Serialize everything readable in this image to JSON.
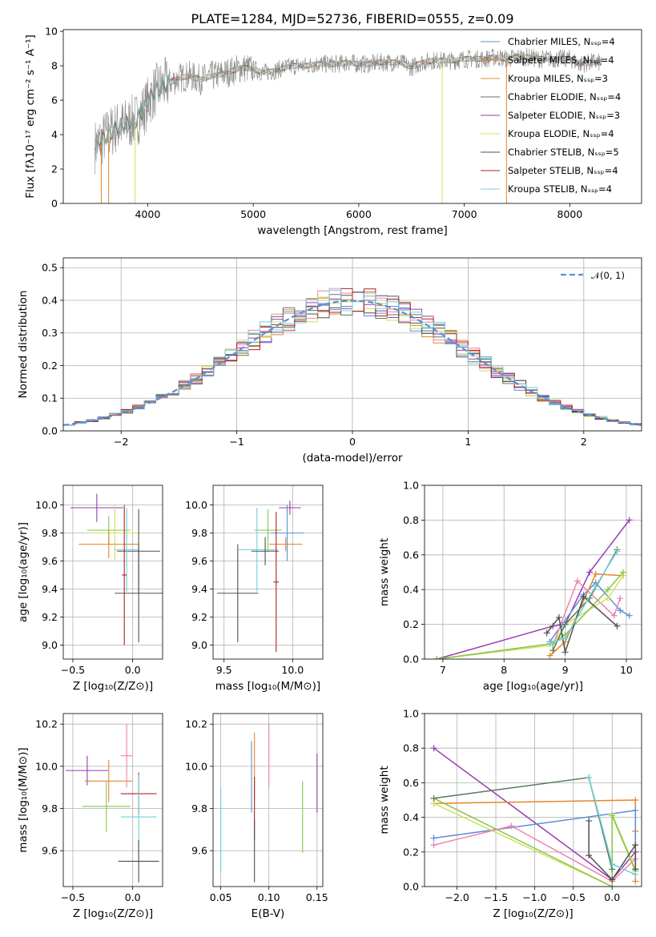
{
  "chart_data": [
    {
      "type": "line",
      "title": "PLATE=1284, MJD=52736, FIBERID=0555, z=0.09",
      "xlabel": "wavelength [Angstrom, rest frame]",
      "ylabel": "Flux [fλ10⁻¹⁷ erg cm⁻² s⁻¹ A⁻¹]",
      "xlim": [
        3200,
        8680
      ],
      "ylim": [
        0,
        10.1
      ],
      "xticks": [
        "4000",
        "5000",
        "6000",
        "7000",
        "8000"
      ],
      "yticks": [
        "0",
        "2",
        "4",
        "6",
        "8",
        "10"
      ],
      "grid": false,
      "legend_position": "right",
      "legend": [
        {
          "name": "Chabrier MILES, Nₛₛₚ=4",
          "color": "#5b8fd8"
        },
        {
          "name": "Salpeter MILES, Nₛₛₚ=4",
          "color": "#e8852a"
        },
        {
          "name": "Kroupa MILES, Nₛₛₚ=3",
          "color": "#e0902a"
        },
        {
          "name": "Chabrier ELODIE, Nₛₛₚ=4",
          "color": "#5a7a5a"
        },
        {
          "name": "Salpeter ELODIE, Nₛₛₚ=3",
          "color": "#9a3ab0"
        },
        {
          "name": "Kroupa ELODIE, Nₛₛₚ=4",
          "color": "#cfe060"
        },
        {
          "name": "Chabrier STELIB, Nₛₛₚ=5",
          "color": "#505050"
        },
        {
          "name": "Salpeter STELIB, Nₛₛₚ=4",
          "color": "#b02020"
        },
        {
          "name": "Kroupa STELIB, Nₛₛₚ=4",
          "color": "#70d0d8"
        }
      ],
      "model_x": [
        3500,
        3600,
        3700,
        3800,
        3900,
        4000,
        4050,
        4100,
        4200,
        4300,
        4400,
        4500,
        4600,
        4700,
        4800,
        4900,
        5000,
        5100,
        5200,
        5300,
        5400,
        5500,
        5600,
        5700,
        5800,
        5900,
        6000,
        6100,
        6200,
        6300,
        6400,
        6500,
        6600,
        6700,
        6800,
        6900,
        7000,
        7100,
        7200,
        7300,
        7400,
        7500,
        7600,
        7700,
        7800,
        7900,
        8000,
        8100,
        8200,
        8300
      ],
      "model_y": [
        3.3,
        3.9,
        4.4,
        4.6,
        4.9,
        5.8,
        6.4,
        6.7,
        7.0,
        7.3,
        7.4,
        7.2,
        7.4,
        7.5,
        7.7,
        7.9,
        7.8,
        7.6,
        7.7,
        7.9,
        8.0,
        8.0,
        8.1,
        8.1,
        8.1,
        8.2,
        8.1,
        8.1,
        8.2,
        8.2,
        8.2,
        7.9,
        8.2,
        8.3,
        8.3,
        8.3,
        8.4,
        8.4,
        8.4,
        8.5,
        8.4,
        8.5,
        8.5,
        8.4,
        8.4,
        8.4,
        8.4,
        8.1,
        8.2,
        8.2
      ]
    },
    {
      "type": "histogram",
      "xlabel": "(data-model)/error",
      "ylabel": "Normed distribution",
      "xlim": [
        -2.5,
        2.5
      ],
      "ylim": [
        0,
        0.53
      ],
      "xticks": [
        "−2",
        "−1",
        "0",
        "1",
        "2"
      ],
      "yticks": [
        "0.0",
        "0.1",
        "0.2",
        "0.3",
        "0.4",
        "0.5"
      ],
      "grid": true,
      "legend": [
        {
          "name": "𝒩(0, 1)",
          "color": "#5b8fd8",
          "style": "dashed"
        }
      ],
      "legend_position": "top-right",
      "bin_width": 0.1,
      "bin_start": -2.5,
      "colors": [
        "#5b8fd8",
        "#e8852a",
        "#f080b0",
        "#5a7a5a",
        "#9a3ab0",
        "#cfe060",
        "#505050",
        "#b02020",
        "#70d0d8"
      ]
    },
    {
      "type": "scatter",
      "xlabel": "Z [log₁₀(Z/Z⊙)]",
      "ylabel": "age  [log₁₀(age/yr)]",
      "xlim": [
        -0.58,
        0.25
      ],
      "ylim": [
        8.9,
        10.14
      ],
      "xticks": [
        "−0.5",
        "0.0"
      ],
      "yticks": [
        "9.0",
        "9.2",
        "9.4",
        "9.6",
        "9.8",
        "10.0"
      ],
      "grid": true,
      "points": [
        {
          "x": -0.3,
          "y": 9.98,
          "xerr": 0.22,
          "yerr": 0.1,
          "color": "#9a3ab0"
        },
        {
          "x": -0.2,
          "y": 9.82,
          "xerr": 0.18,
          "yerr": 0.1,
          "color": "#8ac44a"
        },
        {
          "x": -0.15,
          "y": 9.8,
          "xerr": 0.2,
          "yerr": 0.2,
          "color": "#cfe060"
        },
        {
          "x": -0.2,
          "y": 9.72,
          "xerr": 0.25,
          "yerr": 0.1,
          "color": "#e8852a"
        },
        {
          "x": 0.05,
          "y": 9.67,
          "xerr": 0.18,
          "yerr": 0.3,
          "color": "#505050"
        },
        {
          "x": -0.05,
          "y": 9.68,
          "xerr": 0.1,
          "yerr": 0.3,
          "color": "#70d0d8"
        },
        {
          "x": 0.05,
          "y": 9.37,
          "xerr": 0.2,
          "yerr": 0.35,
          "color": "#505050"
        },
        {
          "x": -0.07,
          "y": 9.5,
          "xerr": 0.02,
          "yerr": 0.5,
          "color": "#b02020"
        }
      ]
    },
    {
      "type": "scatter",
      "xlabel": "mass [log₁₀(M/M⊙)]",
      "ylabel": "",
      "xlim": [
        9.42,
        10.22
      ],
      "ylim": [
        8.9,
        10.14
      ],
      "xticks": [
        "9.5",
        "10.0"
      ],
      "yticks": [
        "9.0",
        "9.2",
        "9.4",
        "9.6",
        "9.8",
        "10.0"
      ],
      "grid": true,
      "points": [
        {
          "x": 9.98,
          "y": 9.98,
          "xerr": 0.08,
          "yerr": 0.05,
          "color": "#9a3ab0"
        },
        {
          "x": 9.82,
          "y": 9.82,
          "xerr": 0.1,
          "yerr": 0.15,
          "color": "#8ac44a"
        },
        {
          "x": 9.96,
          "y": 9.8,
          "xerr": 0.12,
          "yerr": 0.2,
          "color": "#5b8fd8"
        },
        {
          "x": 9.95,
          "y": 9.72,
          "xerr": 0.12,
          "yerr": 0.05,
          "color": "#e8852a"
        },
        {
          "x": 9.6,
          "y": 9.37,
          "xerr": 0.15,
          "yerr": 0.35,
          "color": "#505050"
        },
        {
          "x": 9.74,
          "y": 9.68,
          "xerr": 0.15,
          "yerr": 0.3,
          "color": "#70d0d8"
        },
        {
          "x": 9.8,
          "y": 9.67,
          "xerr": 0.1,
          "yerr": 0.1,
          "color": "#505050"
        },
        {
          "x": 9.88,
          "y": 9.45,
          "xerr": 0.02,
          "yerr": 0.5,
          "color": "#b02020"
        }
      ]
    },
    {
      "type": "line",
      "xlabel": "age  [log₁₀(age/yr)]",
      "ylabel": "mass weight",
      "xlim": [
        6.7,
        10.25
      ],
      "ylim": [
        0,
        1.0
      ],
      "xticks": [
        "7",
        "8",
        "9",
        "10"
      ],
      "yticks": [
        "0.0",
        "0.2",
        "0.4",
        "0.6",
        "0.8",
        "1.0"
      ],
      "grid": true,
      "series": [
        {
          "color": "#9a3ab0",
          "x": [
            6.9,
            8.8,
            9.0,
            9.4,
            10.05
          ],
          "y": [
            0.0,
            0.19,
            0.2,
            0.5,
            0.8
          ]
        },
        {
          "color": "#5b8fd8",
          "x": [
            8.75,
            8.95,
            9.3,
            9.5,
            9.9,
            10.05
          ],
          "y": [
            0.1,
            0.2,
            0.37,
            0.44,
            0.28,
            0.25
          ]
        },
        {
          "color": "#e8852a",
          "x": [
            8.75,
            9.0,
            9.5,
            9.95
          ],
          "y": [
            0.02,
            0.1,
            0.49,
            0.48
          ]
        },
        {
          "color": "#f080b0",
          "x": [
            8.8,
            9.2,
            9.8,
            9.9
          ],
          "y": [
            0.08,
            0.45,
            0.25,
            0.35
          ]
        },
        {
          "color": "#cfe060",
          "x": [
            6.9,
            8.8,
            9.0,
            9.7,
            9.95
          ],
          "y": [
            0.0,
            0.08,
            0.2,
            0.35,
            0.48
          ]
        },
        {
          "color": "#8ac44a",
          "x": [
            6.9,
            8.8,
            9.0,
            9.7,
            9.95
          ],
          "y": [
            0.0,
            0.09,
            0.14,
            0.4,
            0.5
          ]
        },
        {
          "color": "#505050",
          "x": [
            8.7,
            8.9,
            9.0,
            9.3,
            9.85
          ],
          "y": [
            0.15,
            0.24,
            0.04,
            0.36,
            0.19
          ]
        },
        {
          "color": "#5a7a5a",
          "x": [
            8.8,
            9.0,
            9.4,
            9.85
          ],
          "y": [
            0.05,
            0.2,
            0.35,
            0.63
          ]
        },
        {
          "color": "#70d0d8",
          "x": [
            8.75,
            9.0,
            9.5,
            9.85
          ],
          "y": [
            0.09,
            0.12,
            0.42,
            0.62
          ]
        }
      ]
    },
    {
      "type": "scatter",
      "xlabel": "Z [log₁₀(Z/Z⊙)]",
      "ylabel": "mass [log₁₀(M/M⊙)]",
      "xlim": [
        -0.58,
        0.25
      ],
      "ylim": [
        9.43,
        10.25
      ],
      "xticks": [
        "−0.5",
        "0.0"
      ],
      "yticks": [
        "9.6",
        "9.8",
        "10.0",
        "10.2"
      ],
      "grid": true,
      "points": [
        {
          "x": -0.38,
          "y": 9.98,
          "xerr": 0.18,
          "yerr": 0.07,
          "color": "#9a3ab0"
        },
        {
          "x": -0.2,
          "y": 9.93,
          "xerr": 0.2,
          "yerr": 0.1,
          "color": "#e8852a"
        },
        {
          "x": -0.22,
          "y": 9.81,
          "xerr": 0.2,
          "yerr": 0.12,
          "color": "#8ac44a"
        },
        {
          "x": 0.05,
          "y": 9.87,
          "xerr": 0.15,
          "yerr": 0.1,
          "color": "#b02020"
        },
        {
          "x": 0.05,
          "y": 9.76,
          "xerr": 0.15,
          "yerr": 0.2,
          "color": "#70d0d8"
        },
        {
          "x": 0.05,
          "y": 9.55,
          "xerr": 0.17,
          "yerr": 0.1,
          "color": "#505050"
        },
        {
          "x": -0.05,
          "y": 10.05,
          "xerr": 0.05,
          "yerr": 0.15,
          "color": "#f080b0"
        }
      ]
    },
    {
      "type": "scatter",
      "xlabel": "E(B-V)",
      "ylabel": "",
      "xlim": [
        0.042,
        0.156
      ],
      "ylim": [
        9.43,
        10.25
      ],
      "xticks": [
        "0.05",
        "0.10",
        "0.15"
      ],
      "yticks": [
        "9.6",
        "9.8",
        "10.0",
        "10.2"
      ],
      "grid": true,
      "points": [
        {
          "x": 0.05,
          "y": 9.7,
          "yerr": 0.2,
          "color": "#70d0d8"
        },
        {
          "x": 0.082,
          "y": 9.95,
          "yerr": 0.17,
          "color": "#5b8fd8"
        },
        {
          "x": 0.085,
          "y": 10.0,
          "yerr": 0.16,
          "color": "#e8852a"
        },
        {
          "x": 0.085,
          "y": 9.8,
          "yerr": 0.15,
          "color": "#b02020"
        },
        {
          "x": 0.085,
          "y": 9.6,
          "yerr": 0.15,
          "color": "#505050"
        },
        {
          "x": 0.1,
          "y": 10.05,
          "yerr": 0.15,
          "color": "#f080b0"
        },
        {
          "x": 0.135,
          "y": 9.76,
          "yerr": 0.17,
          "color": "#8ac44a"
        },
        {
          "x": 0.15,
          "y": 9.92,
          "yerr": 0.14,
          "color": "#9a3ab0"
        }
      ]
    },
    {
      "type": "line",
      "xlabel": "Z [log₁₀(Z/Z⊙)]",
      "ylabel": "mass weight",
      "xlim": [
        -2.42,
        0.38
      ],
      "ylim": [
        0,
        1.0
      ],
      "xticks": [
        "−2.0",
        "−1.5",
        "−1.0",
        "−0.5",
        "0.0"
      ],
      "yticks": [
        "0.0",
        "0.2",
        "0.4",
        "0.6",
        "0.8",
        "1.0"
      ],
      "grid": true,
      "series": [
        {
          "color": "#9a3ab0",
          "x": [
            -2.3,
            0.0,
            0.3
          ],
          "y": [
            0.8,
            0.04,
            0.2
          ]
        },
        {
          "color": "#e8852a",
          "x": [
            -2.3,
            0.3,
            0.3,
            0.3
          ],
          "y": [
            0.48,
            0.5,
            0.03,
            0.32
          ]
        },
        {
          "color": "#5b8fd8",
          "x": [
            -2.3,
            0.3,
            0.3
          ],
          "y": [
            0.28,
            0.44,
            0.1
          ]
        },
        {
          "color": "#f080b0",
          "x": [
            -2.3,
            -1.3,
            0.0,
            0.3
          ],
          "y": [
            0.24,
            0.35,
            0.03,
            0.16
          ]
        },
        {
          "color": "#cfe060",
          "x": [
            -2.3,
            0.0,
            0.0,
            0.3
          ],
          "y": [
            0.48,
            0.0,
            0.42,
            0.1
          ]
        },
        {
          "color": "#8ac44a",
          "x": [
            -2.3,
            0.0,
            0.0,
            0.3
          ],
          "y": [
            0.51,
            0.0,
            0.41,
            0.09
          ]
        },
        {
          "color": "#5a7a5a",
          "x": [
            -2.3,
            -0.3,
            0.0
          ],
          "y": [
            0.51,
            0.63,
            0.1
          ]
        },
        {
          "color": "#505050",
          "x": [
            -0.3,
            -0.3,
            0.0,
            0.3,
            0.3
          ],
          "y": [
            0.38,
            0.18,
            0.04,
            0.24,
            0.1
          ]
        },
        {
          "color": "#70d0d8",
          "x": [
            -0.3,
            0.0,
            0.3
          ],
          "y": [
            0.63,
            0.13,
            0.07
          ]
        }
      ]
    }
  ]
}
